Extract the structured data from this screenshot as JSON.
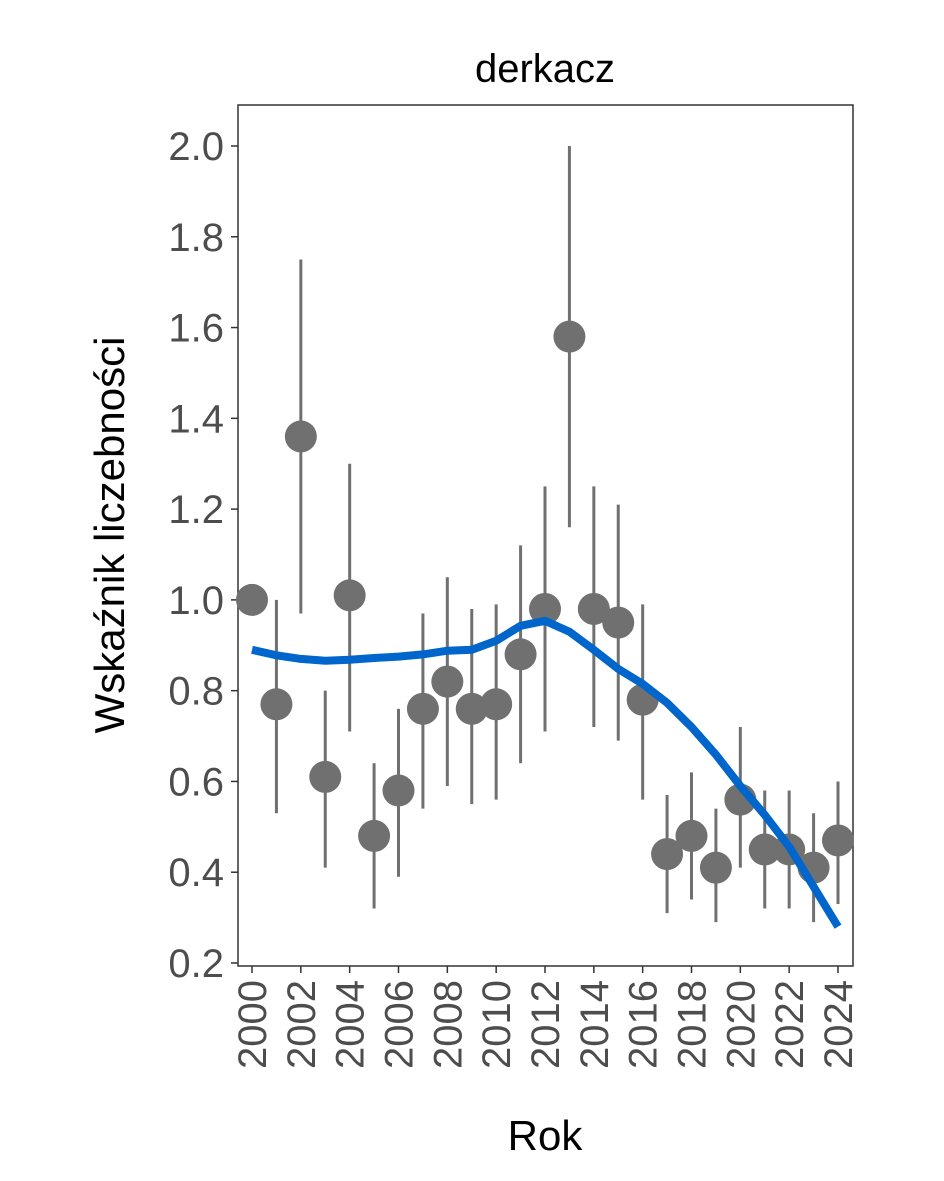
{
  "chart_data": {
    "type": "scatter",
    "title": "derkacz",
    "xlabel": "Rok",
    "ylabel": "Wskaźnik liczebności",
    "xlim": [
      1999.4,
      2024.6
    ],
    "ylim": [
      0.19,
      2.09
    ],
    "x_ticks": [
      "2000",
      "2002",
      "2004",
      "2006",
      "2008",
      "2010",
      "2012",
      "2014",
      "2016",
      "2018",
      "2020",
      "2022",
      "2024"
    ],
    "y_ticks": [
      "0.2",
      "0.4",
      "0.6",
      "0.8",
      "1.0",
      "1.2",
      "1.4",
      "1.6",
      "1.8",
      "2.0"
    ],
    "grid": false,
    "points": [
      {
        "x": 2000,
        "y": 1.0,
        "lo": 1.0,
        "hi": 1.0
      },
      {
        "x": 2001,
        "y": 0.77,
        "lo": 0.53,
        "hi": 1.0
      },
      {
        "x": 2002,
        "y": 1.36,
        "lo": 0.97,
        "hi": 1.75
      },
      {
        "x": 2003,
        "y": 0.61,
        "lo": 0.41,
        "hi": 0.8
      },
      {
        "x": 2004,
        "y": 1.01,
        "lo": 0.71,
        "hi": 1.3
      },
      {
        "x": 2005,
        "y": 0.48,
        "lo": 0.32,
        "hi": 0.64
      },
      {
        "x": 2006,
        "y": 0.58,
        "lo": 0.39,
        "hi": 0.76
      },
      {
        "x": 2007,
        "y": 0.76,
        "lo": 0.54,
        "hi": 0.97
      },
      {
        "x": 2008,
        "y": 0.82,
        "lo": 0.59,
        "hi": 1.05
      },
      {
        "x": 2009,
        "y": 0.76,
        "lo": 0.55,
        "hi": 0.98
      },
      {
        "x": 2010,
        "y": 0.77,
        "lo": 0.56,
        "hi": 0.99
      },
      {
        "x": 2011,
        "y": 0.88,
        "lo": 0.64,
        "hi": 1.12
      },
      {
        "x": 2012,
        "y": 0.98,
        "lo": 0.71,
        "hi": 1.25
      },
      {
        "x": 2013,
        "y": 1.58,
        "lo": 1.16,
        "hi": 2.0
      },
      {
        "x": 2014,
        "y": 0.98,
        "lo": 0.72,
        "hi": 1.25
      },
      {
        "x": 2015,
        "y": 0.95,
        "lo": 0.69,
        "hi": 1.21
      },
      {
        "x": 2016,
        "y": 0.78,
        "lo": 0.56,
        "hi": 0.99
      },
      {
        "x": 2017,
        "y": 0.44,
        "lo": 0.31,
        "hi": 0.57
      },
      {
        "x": 2018,
        "y": 0.48,
        "lo": 0.34,
        "hi": 0.62
      },
      {
        "x": 2019,
        "y": 0.41,
        "lo": 0.29,
        "hi": 0.54
      },
      {
        "x": 2020,
        "y": 0.56,
        "lo": 0.41,
        "hi": 0.72
      },
      {
        "x": 2021,
        "y": 0.45,
        "lo": 0.32,
        "hi": 0.58
      },
      {
        "x": 2022,
        "y": 0.45,
        "lo": 0.32,
        "hi": 0.58
      },
      {
        "x": 2023,
        "y": 0.41,
        "lo": 0.29,
        "hi": 0.53
      },
      {
        "x": 2024,
        "y": 0.47,
        "lo": 0.33,
        "hi": 0.6
      }
    ],
    "trend": {
      "x": [
        2000,
        2001,
        2002,
        2003,
        2004,
        2005,
        2006,
        2007,
        2008,
        2009,
        2010,
        2011,
        2012,
        2013,
        2014,
        2015,
        2016,
        2017,
        2018,
        2019,
        2020,
        2021,
        2022,
        2023,
        2024
      ],
      "y": [
        0.89,
        0.878,
        0.87,
        0.866,
        0.868,
        0.872,
        0.875,
        0.88,
        0.888,
        0.89,
        0.91,
        0.943,
        0.954,
        0.93,
        0.89,
        0.848,
        0.815,
        0.773,
        0.72,
        0.659,
        0.59,
        0.526,
        0.456,
        0.368,
        0.28
      ]
    },
    "colors": {
      "points": "#707070",
      "errorbars": "#707070",
      "trend": "#0066cc",
      "axis": "#333333"
    }
  }
}
